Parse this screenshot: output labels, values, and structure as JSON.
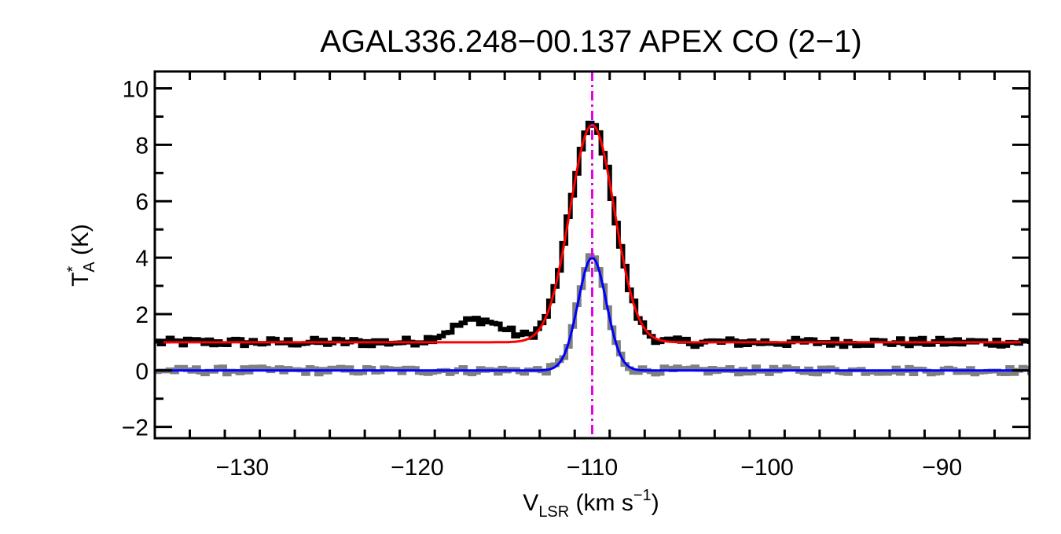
{
  "chart_data": {
    "type": "line",
    "title": "AGAL336.248−00.137  APEX CO (2−1)",
    "xlabel": {
      "main": "V",
      "sub": "LSR",
      "rest": " (km s",
      "sup": "−1",
      "end": ")"
    },
    "ylabel": {
      "main": "T",
      "sup": "*",
      "sub": "A",
      "rest": " (K)"
    },
    "xlim": [
      -135,
      -85
    ],
    "ylim": [
      -2.4,
      10.6
    ],
    "x_ticks": [
      -130,
      -120,
      -110,
      -100,
      -90
    ],
    "x_tick_labels": [
      "−130",
      "−120",
      "−110",
      "−100",
      "−90"
    ],
    "y_ticks": [
      -2,
      0,
      2,
      4,
      6,
      8,
      10
    ],
    "y_tick_labels": [
      "−2",
      "0",
      "2",
      "4",
      "6",
      "8",
      "10"
    ],
    "x_minor_step": 2,
    "y_minor_step": 1,
    "grid": false,
    "vline": {
      "x": -110,
      "color": "#e600e6",
      "style": "dash-dot"
    },
    "series": [
      {
        "style": "histogram",
        "color": "#000000",
        "offset": 1.0,
        "components": [
          {
            "amp": 7.7,
            "center": -110.0,
            "fwhm": 3.0
          },
          {
            "amp": 0.8,
            "center": -116.5,
            "fwhm": 3.5
          }
        ],
        "noise": 0.15
      },
      {
        "style": "histogram",
        "color": "#808080",
        "offset": 0.0,
        "components": [
          {
            "amp": 4.0,
            "center": -110.0,
            "fwhm": 1.9
          }
        ],
        "noise": 0.13
      },
      {
        "style": "fit",
        "color": "#ff0000",
        "offset": 1.0,
        "components": [
          {
            "amp": 7.7,
            "center": -110.0,
            "fwhm": 3.0
          }
        ]
      },
      {
        "style": "fit",
        "color": "#0000ff",
        "offset": 0.0,
        "components": [
          {
            "amp": 4.0,
            "center": -110.0,
            "fwhm": 1.9
          }
        ]
      }
    ],
    "channel_width": 0.25
  }
}
